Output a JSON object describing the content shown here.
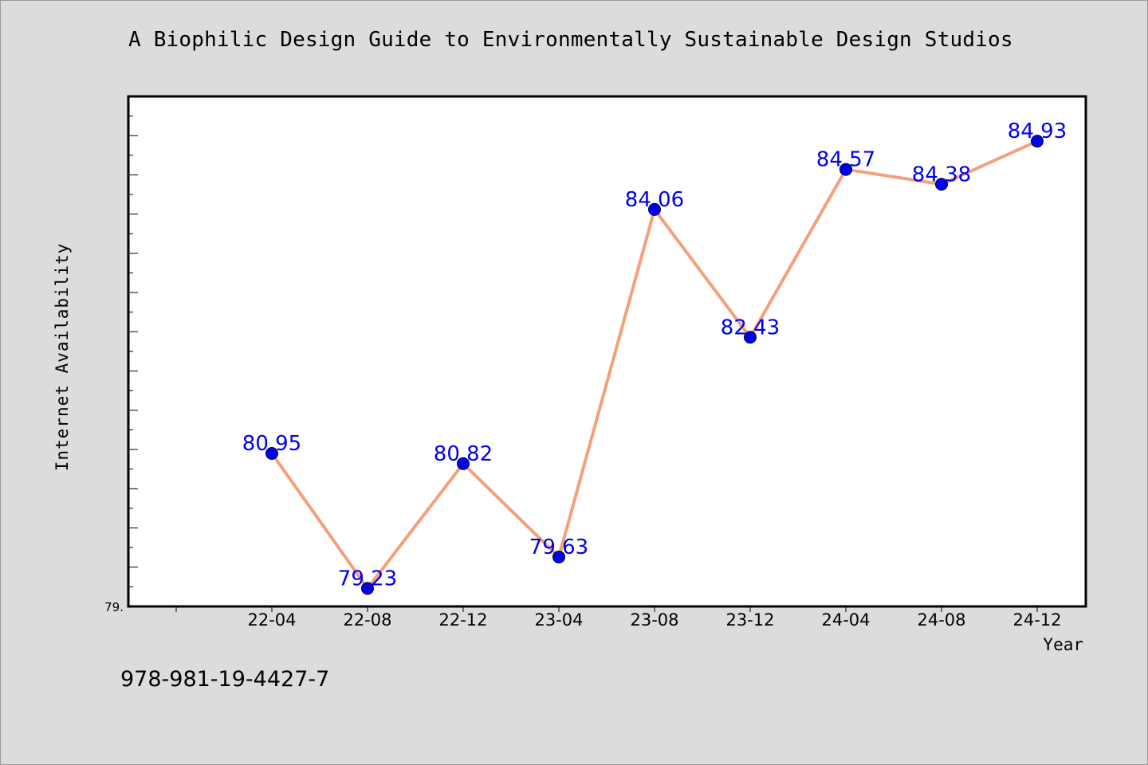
{
  "chart_data": {
    "type": "line",
    "title": "A Biophilic Design Guide to Environmentally Sustainable Design Studios",
    "xlabel": "Year",
    "ylabel": "Internet Availability",
    "categories": [
      "22-04",
      "22-08",
      "22-12",
      "23-04",
      "23-08",
      "23-12",
      "24-04",
      "24-08",
      "24-12"
    ],
    "series": [
      {
        "values": [
          80.95,
          79.23,
          80.82,
          79.63,
          84.06,
          82.43,
          84.57,
          84.38,
          84.93
        ],
        "labels": [
          "80.95",
          "79.23",
          "80.82",
          "79.63",
          "84.06",
          "82.43",
          "84.57",
          "84.38",
          "84.93"
        ]
      }
    ],
    "y_tick_label": "79.",
    "ylim": [
      79.0,
      85.5
    ],
    "grid": false,
    "colors": {
      "line": "#f4a07a",
      "marker": "#0000ee",
      "data_label": "#0000ee",
      "plot_background": "#ffffff",
      "page_background": "#dcdcdc"
    }
  },
  "footer": {
    "isbn": "978-981-19-4427-7"
  }
}
